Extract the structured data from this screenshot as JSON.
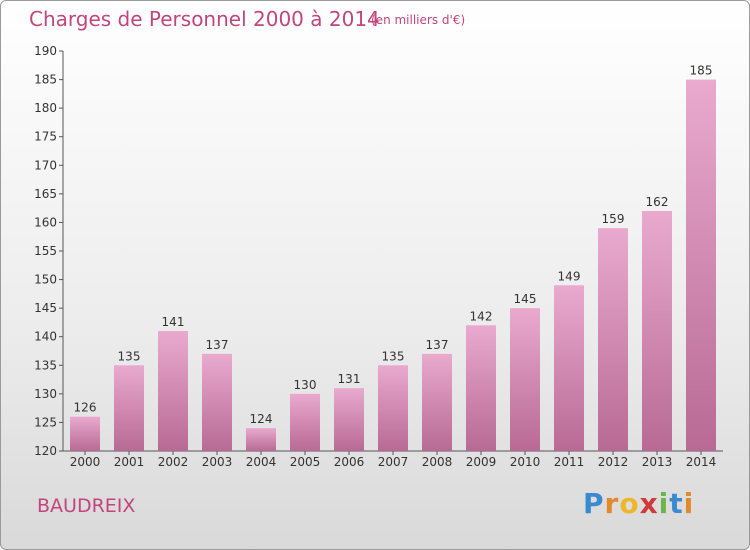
{
  "header": {
    "title": "Charges de Personnel 2000 à 2014",
    "subtitle": "(en milliers d'€)"
  },
  "footer": {
    "commune": "BAUDREIX",
    "logo_letters": [
      "P",
      "r",
      "o",
      "x",
      "i",
      "t",
      "i"
    ]
  },
  "colors": {
    "accent": "#c2457e",
    "bar_light": "#e9aace",
    "bar_dark": "#b86a94",
    "logo": [
      "#3a8ad0",
      "#e2892a",
      "#f0b62b",
      "#cf3b3b",
      "#6bb64a",
      "#3a8ad0",
      "#e2892a"
    ]
  },
  "chart_data": {
    "type": "bar",
    "title": "Charges de Personnel 2000 à 2014",
    "subtitle": "(en milliers d'€)",
    "categories": [
      "2000",
      "2001",
      "2002",
      "2003",
      "2004",
      "2005",
      "2006",
      "2007",
      "2008",
      "2009",
      "2010",
      "2011",
      "2012",
      "2013",
      "2014"
    ],
    "values": [
      126,
      135,
      141,
      137,
      124,
      130,
      131,
      135,
      137,
      142,
      145,
      149,
      159,
      162,
      185
    ],
    "ylim": [
      120,
      190
    ],
    "yticks": [
      120,
      125,
      130,
      135,
      140,
      145,
      150,
      155,
      160,
      165,
      170,
      175,
      180,
      185,
      190
    ],
    "grid": false,
    "legend": "none"
  }
}
